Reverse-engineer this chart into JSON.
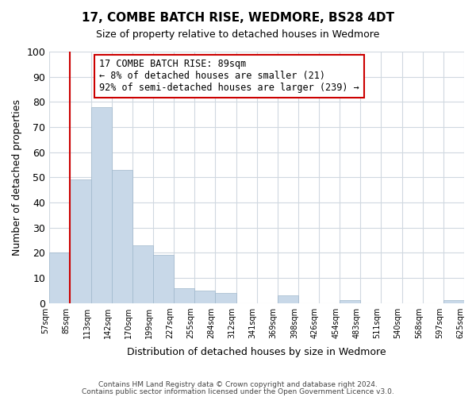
{
  "title": "17, COMBE BATCH RISE, WEDMORE, BS28 4DT",
  "subtitle": "Size of property relative to detached houses in Wedmore",
  "xlabel": "Distribution of detached houses by size in Wedmore",
  "ylabel": "Number of detached properties",
  "bar_color": "#c8d8e8",
  "bar_edge_color": "#a0b8cc",
  "background_color": "#ffffff",
  "grid_color": "#d0d8e0",
  "vline_color": "#cc0000",
  "annotation_box_color": "#cc0000",
  "annotation_line1": "17 COMBE BATCH RISE: 89sqm",
  "annotation_line2": "← 8% of detached houses are smaller (21)",
  "annotation_line3": "92% of semi-detached houses are larger (239) →",
  "bin_labels": [
    "57sqm",
    "85sqm",
    "113sqm",
    "142sqm",
    "170sqm",
    "199sqm",
    "227sqm",
    "255sqm",
    "284sqm",
    "312sqm",
    "341sqm",
    "369sqm",
    "398sqm",
    "426sqm",
    "454sqm",
    "483sqm",
    "511sqm",
    "540sqm",
    "568sqm",
    "597sqm",
    "625sqm"
  ],
  "values": [
    20,
    49,
    78,
    53,
    23,
    19,
    6,
    5,
    4,
    0,
    0,
    3,
    0,
    0,
    1,
    0,
    0,
    0,
    0,
    1
  ],
  "vline_bar_index": 1,
  "ylim": [
    0,
    100
  ],
  "yticks": [
    0,
    10,
    20,
    30,
    40,
    50,
    60,
    70,
    80,
    90,
    100
  ],
  "footer1": "Contains HM Land Registry data © Crown copyright and database right 2024.",
  "footer2": "Contains public sector information licensed under the Open Government Licence v3.0."
}
